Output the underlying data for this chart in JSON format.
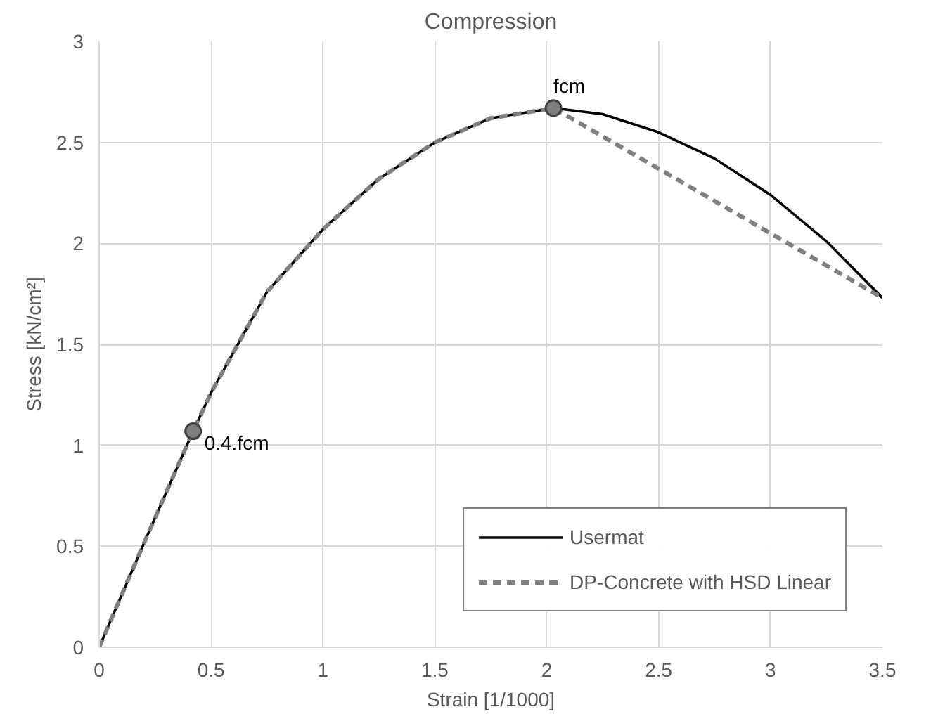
{
  "chart_data": {
    "type": "line",
    "title": "Compression",
    "xlabel": "Strain [1/1000]",
    "ylabel": "Stress [kN/cm²]",
    "xlim": [
      0,
      3.5
    ],
    "xticks": [
      0,
      0.5,
      1,
      1.5,
      2,
      2.5,
      3,
      3.5
    ],
    "ylim": [
      0,
      3
    ],
    "yticks": [
      0,
      0.5,
      1,
      1.5,
      2,
      2.5,
      3
    ],
    "grid": true,
    "legend": "bottom right",
    "marker": "none",
    "series": [
      {
        "name": "Usermat",
        "color": "#000000",
        "line_style": "solid",
        "x": [
          0,
          0.21,
          0.42,
          0.5,
          0.75,
          1.0,
          1.25,
          1.5,
          1.75,
          2.03,
          2.25,
          2.5,
          2.75,
          3.0,
          3.25,
          3.5
        ],
        "values": [
          0,
          0.54,
          1.07,
          1.26,
          1.76,
          2.07,
          2.32,
          2.5,
          2.62,
          2.67,
          2.64,
          2.55,
          2.42,
          2.24,
          2.01,
          1.73
        ]
      },
      {
        "name": "DP-Concrete with HSD Linear",
        "color": "#808080",
        "line_style": "dashed",
        "x": [
          0,
          0.21,
          0.42,
          0.5,
          0.75,
          1.0,
          1.25,
          1.5,
          1.75,
          2.03,
          3.5
        ],
        "values": [
          0,
          0.54,
          1.07,
          1.26,
          1.76,
          2.07,
          2.32,
          2.5,
          2.62,
          2.67,
          1.73
        ]
      },
      {
        "type": "scatter",
        "marker": "circle",
        "color": "#7f7f7f",
        "x": [
          0.42,
          2.03
        ],
        "values": [
          1.07,
          2.67
        ]
      }
    ],
    "annotations": [
      {
        "text": "0.4.fcm",
        "x": 0.42,
        "y": 1.07
      },
      {
        "text": "fcm",
        "x": 2.03,
        "y": 2.67
      }
    ]
  }
}
